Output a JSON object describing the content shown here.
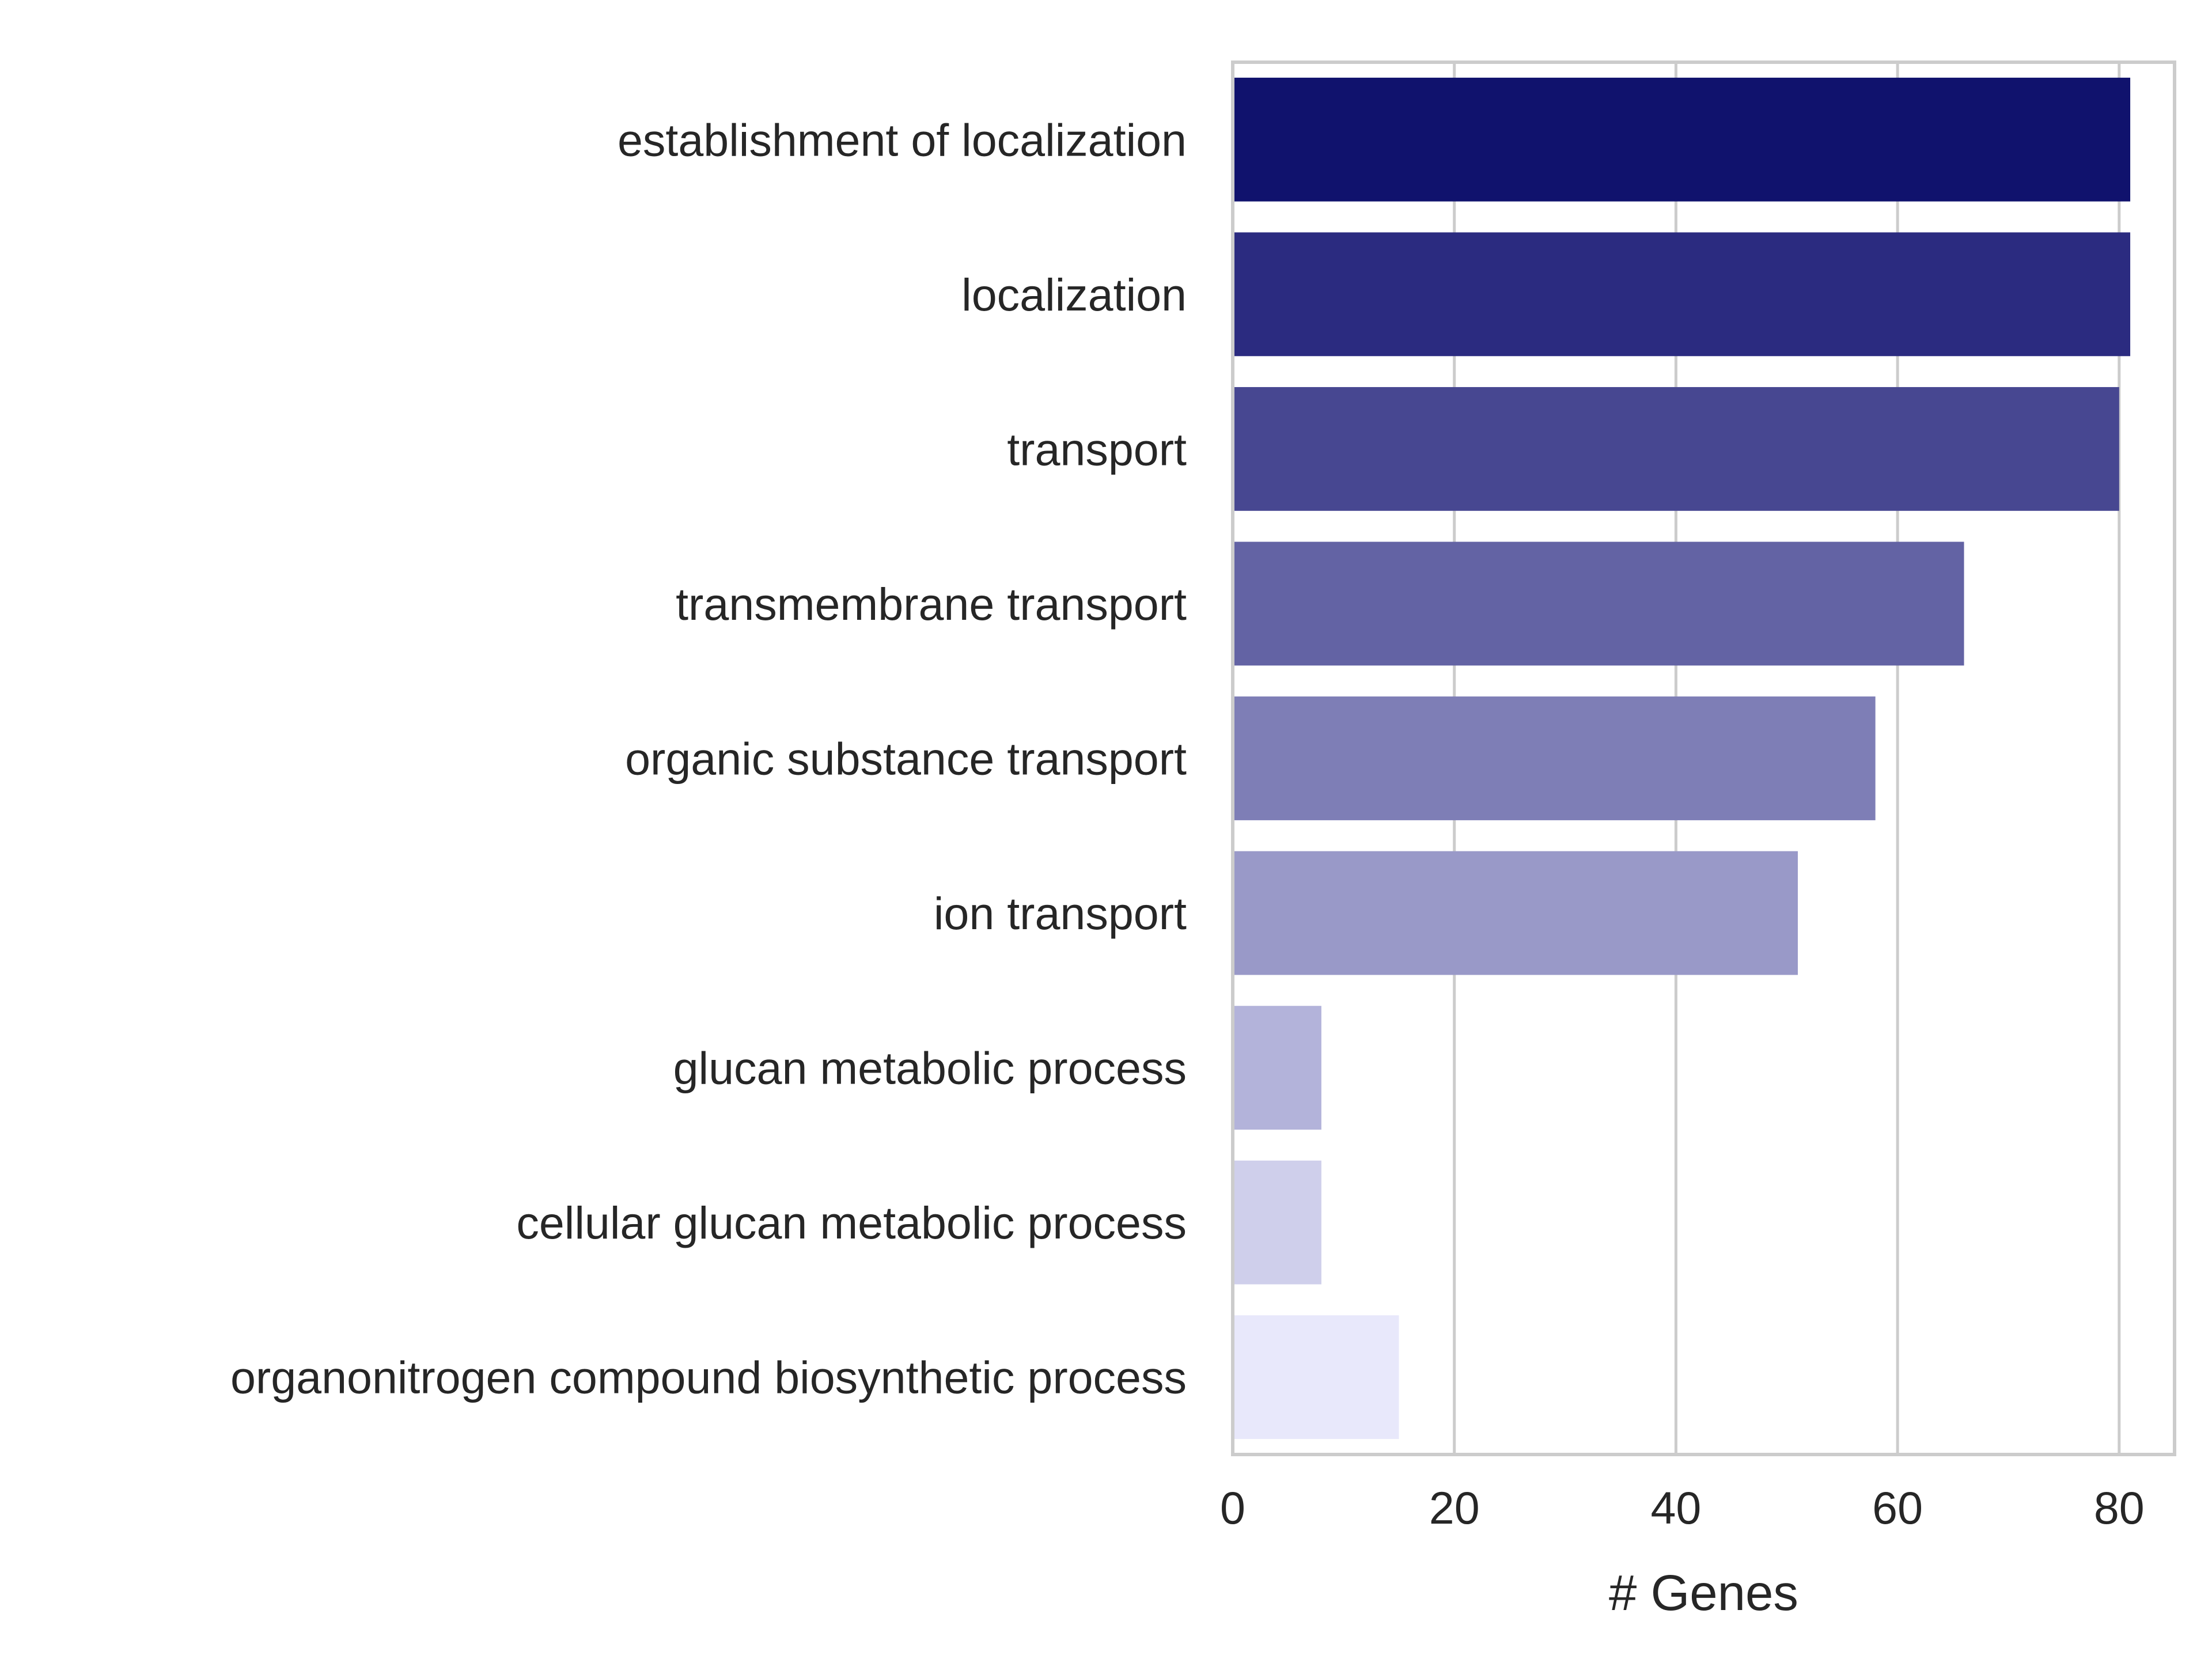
{
  "chart_data": {
    "type": "bar",
    "orientation": "horizontal",
    "categories": [
      "establishment of localization",
      "localization",
      "transport",
      "transmembrane transport",
      "organic substance transport",
      "ion transport",
      "glucan metabolic process",
      "cellular glucan metabolic process",
      "organonitrogen compound biosynthetic process"
    ],
    "values": [
      81,
      81,
      80,
      66,
      58,
      51,
      8,
      8,
      15
    ],
    "colors": [
      "#10126d",
      "#2b2b80",
      "#474791",
      "#6363a4",
      "#7e7eb6",
      "#9999c8",
      "#b3b3da",
      "#cfcfeb",
      "#e8e8fb"
    ],
    "title": "",
    "xlabel": "# Genes",
    "ylabel": "",
    "xlim": [
      0,
      85
    ],
    "xticks": [
      0,
      20,
      40,
      60,
      80
    ],
    "xtick_labels": [
      "0",
      "20",
      "40",
      "60",
      "80"
    ],
    "grid": "vertical",
    "legend": "none"
  }
}
